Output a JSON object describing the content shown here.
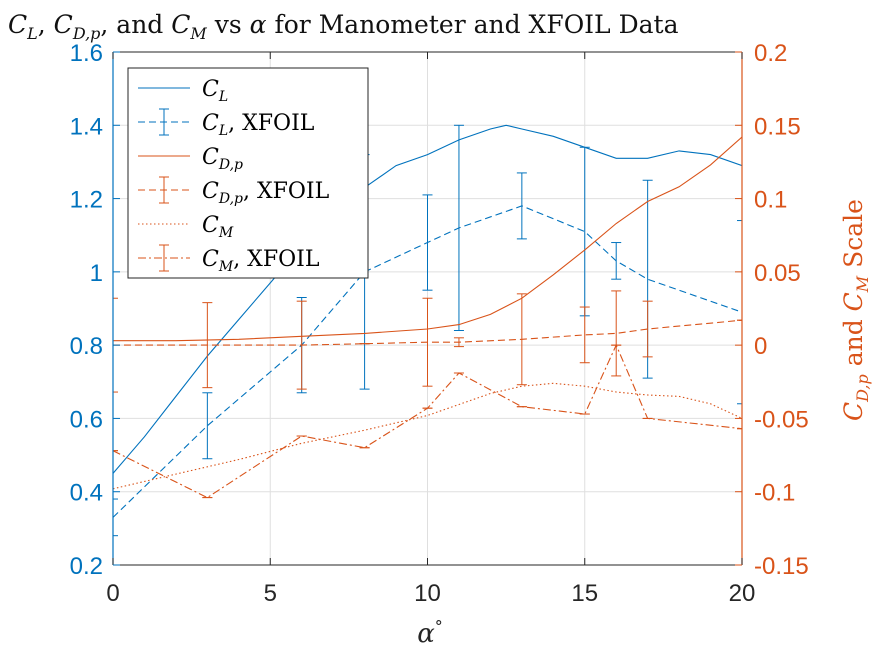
{
  "chart_data": {
    "type": "line",
    "title": "C_L, C_{D,p}, and C_M vs α for Manometer and XFOIL Data",
    "xlabel": "α°",
    "ylabel_left": "",
    "ylabel_right": "C_{D,p} and C_M Scale",
    "xlim": [
      0,
      20
    ],
    "ylim_left": [
      0.2,
      1.6
    ],
    "ylim_right": [
      -0.15,
      0.2
    ],
    "grid": true,
    "legend_position": "top-left",
    "x_ticks": [
      "0",
      "5",
      "10",
      "15",
      "20"
    ],
    "left_ticks": [
      "0.2",
      "0.4",
      "0.6",
      "0.8",
      "1",
      "1.2",
      "1.4",
      "1.6"
    ],
    "right_ticks": [
      "-0.15",
      "-0.1",
      "-0.05",
      "0",
      "0.05",
      "0.1",
      "0.15",
      "0.2"
    ],
    "colors": {
      "left": "#0072BD",
      "right": "#D95319"
    },
    "series": [
      {
        "name": "C_L",
        "axis": "left",
        "style": "solid",
        "x": [
          0,
          1,
          2,
          3,
          4,
          5,
          6,
          7,
          8,
          9,
          10,
          11,
          12,
          12.5,
          13,
          14,
          15,
          16,
          17,
          18,
          19,
          20
        ],
        "values": [
          0.45,
          0.55,
          0.66,
          0.77,
          0.87,
          0.97,
          1.07,
          1.16,
          1.23,
          1.29,
          1.32,
          1.36,
          1.39,
          1.4,
          1.39,
          1.37,
          1.34,
          1.31,
          1.31,
          1.33,
          1.32,
          1.29
        ]
      },
      {
        "name": "C_L, XFOIL",
        "axis": "left",
        "style": "dashed",
        "x": [
          0,
          3,
          6,
          8,
          10,
          11,
          13,
          15,
          16,
          17,
          20
        ],
        "values": [
          0.33,
          0.58,
          0.8,
          1.0,
          1.08,
          1.12,
          1.18,
          1.11,
          1.03,
          0.98,
          0.89
        ],
        "errors": [
          0.05,
          0.09,
          0.13,
          0.32,
          0.13,
          0.28,
          0.09,
          0.23,
          0.05,
          0.27,
          0.25
        ]
      },
      {
        "name": "C_{D,p}",
        "axis": "right",
        "style": "solid",
        "x": [
          0,
          2,
          4,
          6,
          8,
          10,
          11,
          12,
          13,
          14,
          15,
          16,
          17,
          18,
          19,
          20
        ],
        "values": [
          0.003,
          0.003,
          0.004,
          0.006,
          0.008,
          0.011,
          0.014,
          0.021,
          0.032,
          0.048,
          0.065,
          0.083,
          0.098,
          0.108,
          0.123,
          0.142
        ]
      },
      {
        "name": "C_{D,p}, XFOIL",
        "axis": "right",
        "style": "dashed",
        "x": [
          0,
          3,
          6,
          8,
          10,
          11,
          13,
          15,
          16,
          17,
          20
        ],
        "values": [
          0.0,
          0.0,
          0.0,
          0.001,
          0.002,
          0.002,
          0.004,
          0.007,
          0.008,
          0.011,
          0.017
        ],
        "errors": [
          0.032,
          0.029,
          0.03,
          0.0,
          0.03,
          0.003,
          0.031,
          0.019,
          0.029,
          0.019,
          0.0
        ]
      },
      {
        "name": "C_M",
        "axis": "right",
        "style": "dotted",
        "x": [
          0,
          2,
          4,
          6,
          8,
          10,
          12,
          13,
          14,
          15,
          16,
          17,
          18,
          19,
          20
        ],
        "values": [
          -0.098,
          -0.088,
          -0.078,
          -0.067,
          -0.058,
          -0.048,
          -0.033,
          -0.028,
          -0.026,
          -0.028,
          -0.032,
          -0.034,
          -0.035,
          -0.04,
          -0.05
        ]
      },
      {
        "name": "C_M, XFOIL",
        "axis": "right",
        "style": "dashdot",
        "x": [
          0,
          3,
          6,
          8,
          10,
          11,
          13,
          15,
          16,
          17,
          20
        ],
        "values": [
          -0.072,
          -0.104,
          -0.062,
          -0.07,
          -0.043,
          -0.019,
          -0.042,
          -0.047,
          0.0,
          -0.05,
          -0.057
        ],
        "errors": [
          0.0,
          0.0,
          0.0,
          0.0,
          0.0,
          0.0,
          0.0,
          0.0,
          0.0,
          0.0,
          0.0
        ]
      }
    ]
  },
  "legend": {
    "entries": [
      {
        "main": "C",
        "sub": "L",
        "suffix": ""
      },
      {
        "main": "C",
        "sub": "L",
        "suffix": ", XFOIL"
      },
      {
        "main": "C",
        "sub": "D,p",
        "suffix": ""
      },
      {
        "main": "C",
        "sub": "D,p",
        "suffix": ", XFOIL"
      },
      {
        "main": "C",
        "sub": "M",
        "suffix": ""
      },
      {
        "main": "C",
        "sub": "M",
        "suffix": ", XFOIL"
      }
    ]
  },
  "title_parts": {
    "c": "C",
    "sub_l": "L",
    "sep1": ", ",
    "sub_dp": "D,p",
    "and": ", and ",
    "sub_m": "M",
    "vs": " vs ",
    "alpha": "α",
    "rest": " for Manometer and XFOIL Data"
  },
  "xlabel_parts": {
    "alpha": "α",
    "deg": "°"
  },
  "ylabel_right_parts": {
    "c": "C",
    "sub_dp": "D,p",
    "and": " and ",
    "sub_m": "M",
    "scale": " Scale"
  }
}
